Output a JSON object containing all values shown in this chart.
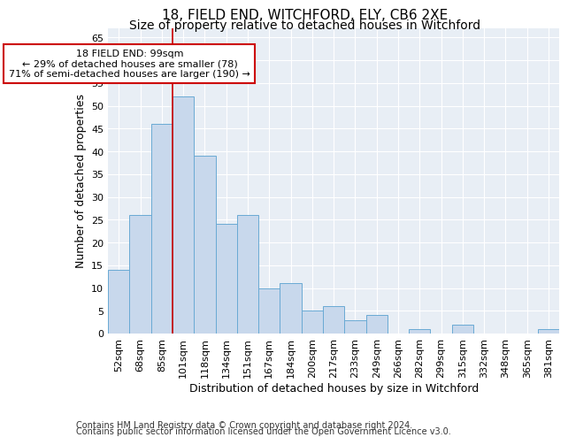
{
  "title1": "18, FIELD END, WITCHFORD, ELY, CB6 2XE",
  "title2": "Size of property relative to detached houses in Witchford",
  "xlabel": "Distribution of detached houses by size in Witchford",
  "ylabel": "Number of detached properties",
  "categories": [
    "52sqm",
    "68sqm",
    "85sqm",
    "101sqm",
    "118sqm",
    "134sqm",
    "151sqm",
    "167sqm",
    "184sqm",
    "200sqm",
    "217sqm",
    "233sqm",
    "249sqm",
    "266sqm",
    "282sqm",
    "299sqm",
    "315sqm",
    "332sqm",
    "348sqm",
    "365sqm",
    "381sqm"
  ],
  "values": [
    14,
    26,
    46,
    52,
    39,
    24,
    26,
    10,
    11,
    5,
    6,
    3,
    4,
    0,
    1,
    0,
    2,
    0,
    0,
    0,
    1
  ],
  "bar_color": "#c8d8ec",
  "bar_edge_color": "#6aaad4",
  "ref_line_color": "#cc0000",
  "annotation_text": "18 FIELD END: 99sqm\n← 29% of detached houses are smaller (78)\n71% of semi-detached houses are larger (190) →",
  "annotation_box_color": "#ffffff",
  "annotation_box_edge": "#cc0000",
  "ylim": [
    0,
    67
  ],
  "yticks": [
    0,
    5,
    10,
    15,
    20,
    25,
    30,
    35,
    40,
    45,
    50,
    55,
    60,
    65
  ],
  "footer1": "Contains HM Land Registry data © Crown copyright and database right 2024.",
  "footer2": "Contains public sector information licensed under the Open Government Licence v3.0.",
  "background_color": "#ffffff",
  "plot_background": "#e8eef5",
  "grid_color": "#ffffff",
  "title1_fontsize": 11,
  "title2_fontsize": 10,
  "axis_label_fontsize": 9,
  "tick_fontsize": 8,
  "footer_fontsize": 7
}
